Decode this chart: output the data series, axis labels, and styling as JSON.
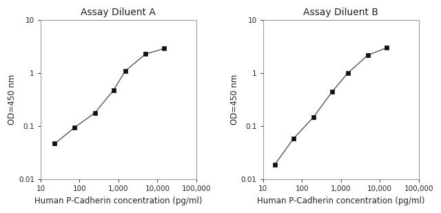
{
  "chart_A": {
    "title": "Assay Diluent A",
    "x": [
      23,
      75,
      250,
      750,
      1500,
      5000,
      15000
    ],
    "y": [
      0.047,
      0.095,
      0.18,
      0.48,
      1.1,
      2.3,
      2.9
    ],
    "xlabel": "Human P-Cadherin concentration (pg/ml)",
    "ylabel": "OD=450 nm",
    "xlim": [
      10,
      100000
    ],
    "ylim": [
      0.01,
      10
    ]
  },
  "chart_B": {
    "title": "Assay Diluent B",
    "x": [
      20,
      60,
      200,
      600,
      1500,
      5000,
      15000
    ],
    "y": [
      0.019,
      0.058,
      0.15,
      0.45,
      1.0,
      2.2,
      3.0
    ],
    "xlabel": "Human P-Cadherin concentration (pg/ml)",
    "ylabel": "OD=450 nm",
    "xlim": [
      10,
      100000
    ],
    "ylim": [
      0.01,
      10
    ]
  },
  "line_color": "#555555",
  "marker_color": "#111111",
  "background_color": "#ffffff",
  "spine_color": "#999999",
  "title_fontsize": 10,
  "label_fontsize": 8.5,
  "tick_fontsize": 7.5
}
